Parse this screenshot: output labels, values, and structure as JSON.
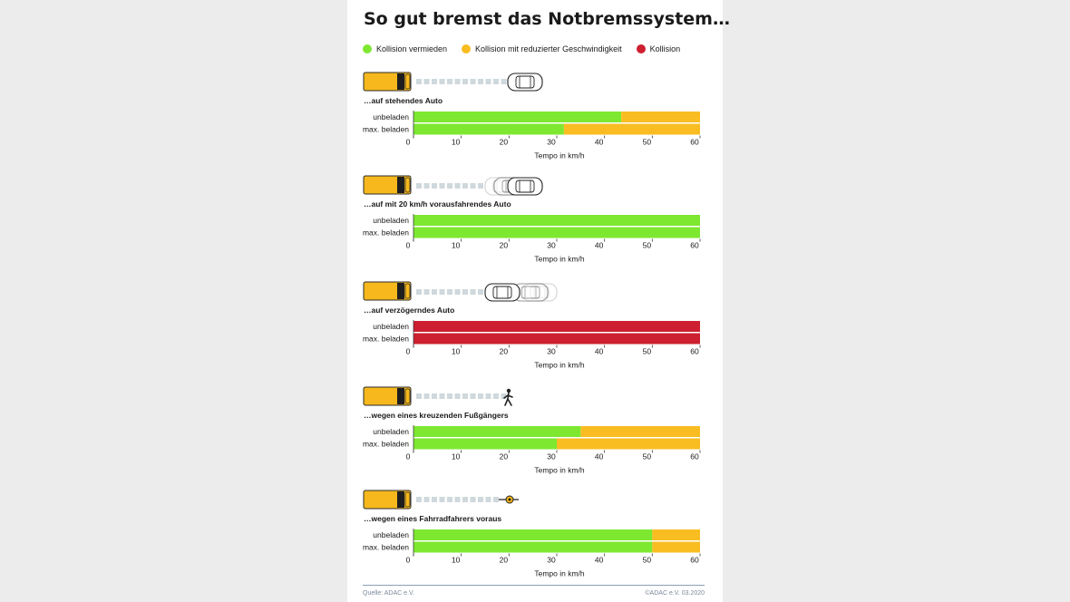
{
  "title": "So gut bremst das Notbremssystem…",
  "legend": {
    "avoided": {
      "label": "Kollision vermieden",
      "color": "#7ee831"
    },
    "reduced": {
      "label": "Kollision mit reduzierter Geschwindigkeit",
      "color": "#f9bd22"
    },
    "collision": {
      "label": "Kollision",
      "color": "#cc1f2f"
    }
  },
  "source": "Quelle: ADAC e.V.",
  "copyright": "©ADAC e.V.   03.2020",
  "chart_data": [
    {
      "type": "bar",
      "title": "…auf stehendes Auto",
      "scenario_icon": "stationary-car-icon",
      "categories": [
        "unbeladen",
        "max. beladen"
      ],
      "series": [
        {
          "name": "Kollision vermieden",
          "values": [
            43.5,
            31.5
          ]
        },
        {
          "name": "Kollision mit reduzierter Geschwindigkeit",
          "values": [
            16.5,
            28.5
          ]
        },
        {
          "name": "Kollision",
          "values": [
            0,
            0
          ]
        }
      ],
      "xlabel": "Tempo in km/h",
      "xticks": [
        0,
        10,
        20,
        30,
        40,
        50,
        60
      ],
      "xlim": [
        0,
        60
      ]
    },
    {
      "type": "bar",
      "title": "…auf mit 20 km/h vorausfahrendes Auto",
      "scenario_icon": "moving-car-icon",
      "categories": [
        "unbeladen",
        "max. beladen"
      ],
      "series": [
        {
          "name": "Kollision vermieden",
          "values": [
            60,
            60
          ]
        },
        {
          "name": "Kollision mit reduzierter Geschwindigkeit",
          "values": [
            0,
            0
          ]
        },
        {
          "name": "Kollision",
          "values": [
            0,
            0
          ]
        }
      ],
      "xlabel": "Tempo in km/h",
      "xticks": [
        0,
        10,
        20,
        30,
        40,
        50,
        60
      ],
      "xlim": [
        0,
        60
      ]
    },
    {
      "type": "bar",
      "title": "…auf verzögerndes Auto",
      "scenario_icon": "braking-car-icon",
      "categories": [
        "unbeladen",
        "max. beladen"
      ],
      "series": [
        {
          "name": "Kollision vermieden",
          "values": [
            0,
            0
          ]
        },
        {
          "name": "Kollision mit reduzierter Geschwindigkeit",
          "values": [
            0,
            0
          ]
        },
        {
          "name": "Kollision",
          "values": [
            60,
            60
          ]
        }
      ],
      "xlabel": "Tempo in km/h",
      "xticks": [
        0,
        10,
        20,
        30,
        40,
        50,
        60
      ],
      "xlim": [
        0,
        60
      ]
    },
    {
      "type": "bar",
      "title": "…wegen eines kreuzenden Fußgängers",
      "scenario_icon": "pedestrian-icon",
      "categories": [
        "unbeladen",
        "max. beladen"
      ],
      "series": [
        {
          "name": "Kollision vermieden",
          "values": [
            35,
            30
          ]
        },
        {
          "name": "Kollision mit reduzierter Geschwindigkeit",
          "values": [
            25,
            30
          ]
        },
        {
          "name": "Kollision",
          "values": [
            0,
            0
          ]
        }
      ],
      "xlabel": "Tempo in km/h",
      "xticks": [
        0,
        10,
        20,
        30,
        40,
        50,
        60
      ],
      "xlim": [
        0,
        60
      ]
    },
    {
      "type": "bar",
      "title": "…wegen eines Fahrradfahrers voraus",
      "scenario_icon": "cyclist-icon",
      "categories": [
        "unbeladen",
        "max. beladen"
      ],
      "series": [
        {
          "name": "Kollision vermieden",
          "values": [
            50,
            50
          ]
        },
        {
          "name": "Kollision mit reduzierter Geschwindigkeit",
          "values": [
            10,
            10
          ]
        },
        {
          "name": "Kollision",
          "values": [
            0,
            0
          ]
        }
      ],
      "xlabel": "Tempo in km/h",
      "xticks": [
        0,
        10,
        20,
        30,
        40,
        50,
        60
      ],
      "xlim": [
        0,
        60
      ]
    }
  ]
}
